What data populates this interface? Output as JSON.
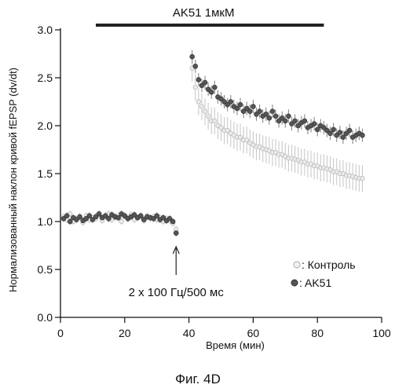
{
  "chart_data": {
    "type": "scatter",
    "title": "",
    "xlabel": "Время (мин)",
    "ylabel": "Нормализованный наклон кривой fEPSP (dv/dt)",
    "xlim": [
      0,
      100
    ],
    "ylim": [
      0.0,
      3.0
    ],
    "xticks": [
      "0",
      "20",
      "40",
      "60",
      "80",
      "100"
    ],
    "yticks": [
      "0.0",
      "0.5",
      "1.0",
      "1.5",
      "2.0",
      "2.5",
      "3.0"
    ],
    "grid": false,
    "legend_position": "bottom-right",
    "drug_bar": {
      "label": "AK51 1мкМ",
      "x_start": 11,
      "x_end": 82
    },
    "stimulus": {
      "label": "2 x 100 Гц/500 мс",
      "x": 36
    },
    "caption": "Фиг. 4D",
    "series": [
      {
        "name": ": Контроль",
        "marker": "open-circle",
        "color": "#b8b8b8",
        "x": [
          1,
          2,
          3,
          4,
          5,
          6,
          7,
          8,
          9,
          10,
          11,
          12,
          13,
          14,
          15,
          16,
          17,
          18,
          19,
          20,
          21,
          22,
          23,
          24,
          25,
          26,
          27,
          28,
          29,
          30,
          31,
          32,
          33,
          34,
          35,
          36,
          41,
          42,
          43,
          44,
          45,
          46,
          47,
          48,
          49,
          50,
          51,
          52,
          53,
          54,
          55,
          56,
          57,
          58,
          59,
          60,
          61,
          62,
          63,
          64,
          65,
          66,
          67,
          68,
          69,
          70,
          71,
          72,
          73,
          74,
          75,
          76,
          77,
          78,
          79,
          80,
          81,
          82,
          83,
          84,
          85,
          86,
          87,
          88,
          89,
          90,
          91,
          92,
          93,
          94
        ],
        "y": [
          1.05,
          1.02,
          1.08,
          1.0,
          1.03,
          1.05,
          0.99,
          1.06,
          1.02,
          1.04,
          1.03,
          1.07,
          1.01,
          1.05,
          1.08,
          1.02,
          1.04,
          1.06,
          1.0,
          1.05,
          1.03,
          1.07,
          1.02,
          1.04,
          1.05,
          1.01,
          1.06,
          1.03,
          1.05,
          1.02,
          1.04,
          1.0,
          1.03,
          1.01,
          0.98,
          0.92,
          2.6,
          2.4,
          2.25,
          2.2,
          2.15,
          2.1,
          2.05,
          2.05,
          2.0,
          1.98,
          1.95,
          1.95,
          1.92,
          1.9,
          1.88,
          1.88,
          1.85,
          1.85,
          1.82,
          1.8,
          1.78,
          1.78,
          1.76,
          1.75,
          1.74,
          1.72,
          1.72,
          1.7,
          1.7,
          1.68,
          1.66,
          1.66,
          1.65,
          1.64,
          1.62,
          1.62,
          1.6,
          1.6,
          1.58,
          1.58,
          1.56,
          1.56,
          1.55,
          1.54,
          1.52,
          1.52,
          1.5,
          1.5,
          1.48,
          1.48,
          1.47,
          1.46,
          1.45,
          1.45
        ]
      },
      {
        "name": ": AK51",
        "marker": "filled-circle",
        "color": "#555555",
        "x": [
          1,
          2,
          3,
          4,
          5,
          6,
          7,
          8,
          9,
          10,
          11,
          12,
          13,
          14,
          15,
          16,
          17,
          18,
          19,
          20,
          21,
          22,
          23,
          24,
          25,
          26,
          27,
          28,
          29,
          30,
          31,
          32,
          33,
          34,
          35,
          36,
          41,
          42,
          43,
          44,
          45,
          46,
          47,
          48,
          49,
          50,
          51,
          52,
          53,
          54,
          55,
          56,
          57,
          58,
          59,
          60,
          61,
          62,
          63,
          64,
          65,
          66,
          67,
          68,
          69,
          70,
          71,
          72,
          73,
          74,
          75,
          76,
          77,
          78,
          79,
          80,
          81,
          82,
          83,
          84,
          85,
          86,
          87,
          88,
          89,
          90,
          91,
          92,
          93,
          94
        ],
        "y": [
          1.03,
          1.06,
          1.0,
          1.04,
          1.02,
          1.05,
          1.01,
          1.03,
          1.06,
          1.02,
          1.05,
          1.08,
          1.04,
          1.06,
          1.03,
          1.07,
          1.05,
          1.04,
          1.08,
          1.06,
          1.03,
          1.05,
          1.07,
          1.04,
          1.06,
          1.02,
          1.05,
          1.04,
          1.03,
          1.06,
          1.02,
          1.04,
          1.01,
          1.03,
          1.0,
          0.88,
          2.72,
          2.62,
          2.48,
          2.42,
          2.45,
          2.38,
          2.35,
          2.4,
          2.3,
          2.28,
          2.25,
          2.22,
          2.25,
          2.2,
          2.18,
          2.22,
          2.15,
          2.18,
          2.15,
          2.2,
          2.12,
          2.15,
          2.1,
          2.12,
          2.08,
          2.15,
          2.1,
          2.05,
          2.08,
          2.05,
          2.1,
          2.02,
          2.05,
          2.0,
          2.03,
          2.05,
          1.98,
          2.0,
          2.02,
          1.96,
          2.0,
          1.98,
          1.95,
          1.92,
          1.96,
          1.9,
          1.93,
          1.88,
          1.92,
          1.95,
          1.88,
          1.9,
          1.92,
          1.9
        ]
      }
    ]
  }
}
